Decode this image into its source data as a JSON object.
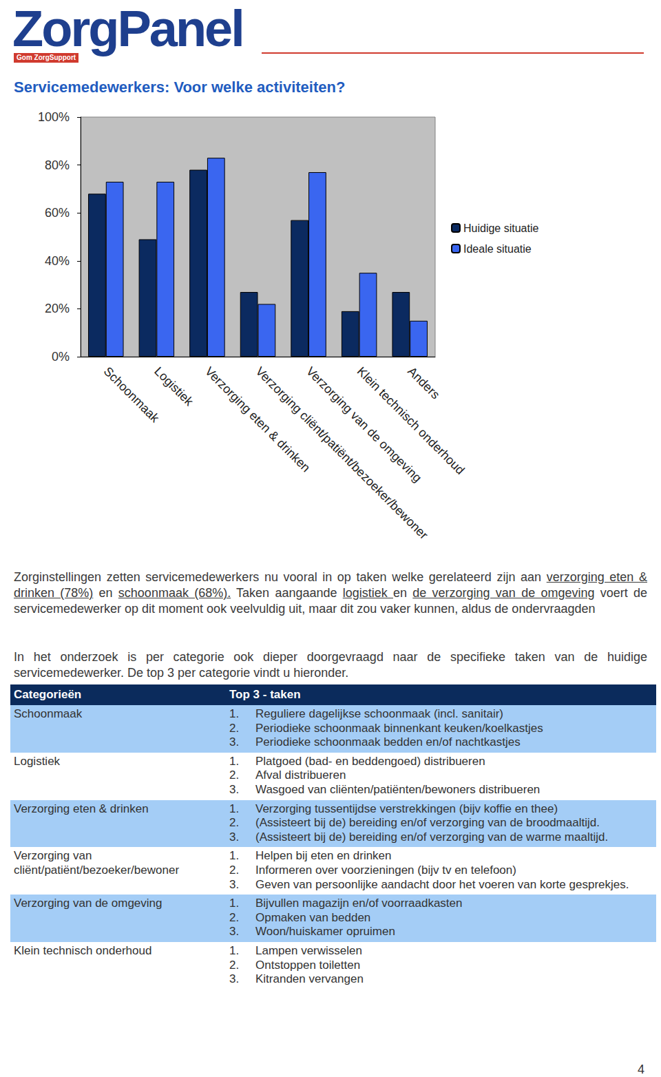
{
  "header": {
    "logo": "ZorgPanel",
    "tagline": "Gom ZorgSupport"
  },
  "title": "Servicemedewerkers: Voor welke activiteiten?",
  "chart_data": {
    "type": "bar",
    "categories": [
      "Schoonmaak",
      "Logistiek",
      "Verzorging eten & drinken",
      "Verzorging cliënt/patiënt/bezoeker/bewoner",
      "Verzorging van de omgeving",
      "Klein technisch onderhoud",
      "Anders"
    ],
    "series": [
      {
        "name": "Huidige situatie",
        "color": "#0B2A60",
        "values": [
          68,
          49,
          78,
          27,
          57,
          19,
          27
        ]
      },
      {
        "name": "Ideale situatie",
        "color": "#3A66F0",
        "values": [
          73,
          73,
          83,
          22,
          77,
          35,
          15
        ]
      }
    ],
    "ylim": [
      0,
      100
    ],
    "yticks": [
      {
        "value": 0,
        "label": "0%"
      },
      {
        "value": 20,
        "label": "20%"
      },
      {
        "value": 40,
        "label": "40%"
      },
      {
        "value": 60,
        "label": "60%"
      },
      {
        "value": 80,
        "label": "80%"
      },
      {
        "value": 100,
        "label": "100%"
      }
    ],
    "grid": false,
    "legend": "right"
  },
  "paragraphs": [
    [
      {
        "text": "Zorginstellingen zetten servicemedewerkers nu vooral in op taken welke gerelateerd zijn aan "
      },
      {
        "text": "verzorging eten & drinken (78%)",
        "underline": true
      },
      {
        "text": " en "
      },
      {
        "text": "schoonmaak (68%).",
        "underline": true
      },
      {
        "text": " Taken aangaande "
      },
      {
        "text": "logistiek ",
        "underline": true
      },
      {
        "text": "en "
      },
      {
        "text": "de verzorging van de omgeving",
        "underline": true
      },
      {
        "text": " voert de servicemedewerker op dit moment ook veelvuldig uit, maar dit zou vaker kunnen, aldus de ondervraagden"
      }
    ],
    [
      {
        "text": "In het onderzoek is per categorie ook dieper doorgevraagd naar de specifieke taken van de huidige servicemedewerker. De top 3 per categorie vindt u hieronder."
      }
    ]
  ],
  "table": {
    "header": [
      "Categorieën",
      "Top 3 - taken"
    ],
    "rows": [
      {
        "category": "Schoonmaak",
        "items": [
          [
            "1.",
            "Reguliere dagelijkse schoonmaak (incl. sanitair)"
          ],
          [
            "2.",
            "Periodieke schoonmaak binnenkant keuken/koelkastjes"
          ],
          [
            "3.",
            "Periodieke schoonmaak bedden en/of nachtkastjes"
          ]
        ]
      },
      {
        "category": "Logistiek",
        "items": [
          [
            "1.",
            "Platgoed (bad- en beddengoed) distribueren"
          ],
          [
            "2.",
            "Afval distribueren"
          ],
          [
            "3.",
            "Wasgoed van cliënten/patiënten/bewoners distribueren"
          ]
        ]
      },
      {
        "category": "Verzorging eten & drinken",
        "items": [
          [
            "1.",
            "Verzorging tussentijdse verstrekkingen (bijv koffie en thee)"
          ],
          [
            "2.",
            "(Assisteert bij de) bereiding en/of verzorging van de broodmaaltijd."
          ],
          [
            "3.",
            "(Assisteert bij de) bereiding en/of verzorging van de warme maaltijd."
          ]
        ]
      },
      {
        "category": "Verzorging van cliënt/patiënt/bezoeker/bewoner",
        "items": [
          [
            "1.",
            "Helpen bij eten en drinken"
          ],
          [
            "2.",
            "Informeren over voorzieningen (bijv tv en telefoon)"
          ],
          [
            "3.",
            "Geven van persoonlijke aandacht door het voeren van korte gesprekjes."
          ]
        ]
      },
      {
        "category": "Verzorging van de omgeving",
        "items": [
          [
            "1.",
            "Bijvullen magazijn en/of voorraadkasten"
          ],
          [
            "2.",
            "Opmaken van bedden"
          ],
          [
            "3.",
            "Woon/huiskamer opruimen"
          ]
        ]
      },
      {
        "category": "Klein technisch onderhoud",
        "items": [
          [
            "1.",
            "Lampen verwisselen"
          ],
          [
            "2.",
            "Ontstoppen toiletten"
          ],
          [
            "3.",
            "Kitranden vervangen"
          ]
        ]
      }
    ]
  },
  "page_number": "4"
}
